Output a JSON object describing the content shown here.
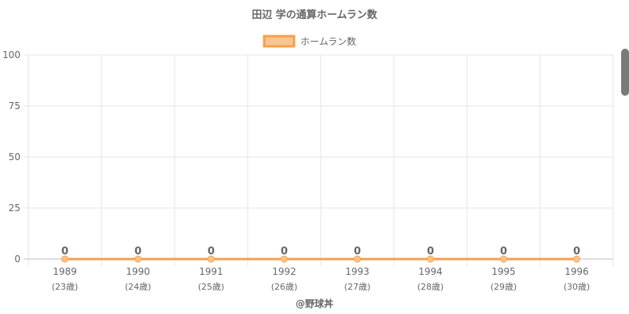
{
  "chart_data": {
    "type": "line",
    "title": "田辺 学の通算ホームラン数",
    "categories": [
      "1989",
      "1990",
      "1991",
      "1992",
      "1993",
      "1994",
      "1995",
      "1996"
    ],
    "category_sublabels": [
      "(23歳)",
      "(24歳)",
      "(25歳)",
      "(26歳)",
      "(27歳)",
      "(28歳)",
      "(29歳)",
      "(30歳)"
    ],
    "series": [
      {
        "name": "ホームラン数",
        "values": [
          0,
          0,
          0,
          0,
          0,
          0,
          0,
          0
        ],
        "color": "#f5a04a",
        "fill": "#f9c48f"
      }
    ],
    "ylim": [
      0,
      100
    ],
    "yticks": [
      0,
      25,
      50,
      75,
      100
    ],
    "grid": true,
    "legend": "top-center",
    "data_labels": true
  },
  "footer": {
    "credit": "@野球丼"
  }
}
